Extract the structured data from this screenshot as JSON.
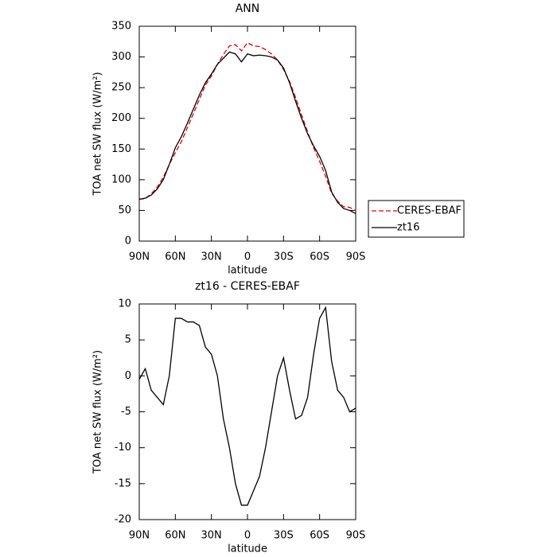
{
  "chart_data": [
    {
      "type": "line",
      "title": "ANN",
      "xlabel": "latitude",
      "ylabel": "TOA net SW flux (W/m²)",
      "x": [
        90,
        85,
        80,
        75,
        70,
        65,
        60,
        55,
        50,
        45,
        40,
        35,
        30,
        25,
        20,
        15,
        10,
        5,
        0,
        -5,
        -10,
        -15,
        -20,
        -25,
        -30,
        -35,
        -40,
        -45,
        -50,
        -55,
        -60,
        -65,
        -70,
        -75,
        -80,
        -85,
        -90
      ],
      "series": [
        {
          "name": "CERES-EBAF",
          "color": "#e00000",
          "dash": true,
          "values": [
            68.5,
            69,
            77,
            88,
            104,
            125,
            144,
            162,
            184.5,
            207.5,
            231,
            254,
            269,
            288,
            304,
            318,
            320,
            310,
            323,
            318,
            317,
            312,
            305,
            295,
            279.5,
            260,
            234,
            205.5,
            178,
            152,
            130,
            105.5,
            78,
            65,
            56,
            55,
            49.5
          ]
        },
        {
          "name": "zt16",
          "color": "#000000",
          "dash": false,
          "values": [
            68,
            70,
            75,
            85,
            100,
            125,
            152,
            170,
            192,
            215,
            238,
            258,
            272,
            288,
            298,
            308,
            305,
            292,
            305,
            302,
            303,
            302,
            300,
            295,
            282,
            258,
            228,
            200,
            175,
            155,
            138,
            115,
            80,
            63,
            53,
            50,
            45
          ]
        }
      ],
      "xlim": [
        90,
        -90
      ],
      "xticks": [
        {
          "value": 90,
          "label": "90N"
        },
        {
          "value": 60,
          "label": "60N"
        },
        {
          "value": 30,
          "label": "30N"
        },
        0,
        {
          "value": -30,
          "label": "30S"
        },
        {
          "value": -60,
          "label": "60S"
        },
        {
          "value": -90,
          "label": "90S"
        }
      ],
      "ylim": [
        0,
        350
      ],
      "yticks": [
        0,
        50,
        100,
        150,
        200,
        250,
        300,
        350
      ],
      "legend": "right"
    },
    {
      "type": "line",
      "title": "zt16 - CERES-EBAF",
      "xlabel": "latitude",
      "ylabel": "TOA net SW flux (W/m²)",
      "x": [
        90,
        85,
        80,
        75,
        70,
        65,
        60,
        55,
        50,
        45,
        40,
        35,
        30,
        25,
        20,
        15,
        10,
        5,
        0,
        -5,
        -10,
        -15,
        -20,
        -25,
        -30,
        -35,
        -40,
        -45,
        -50,
        -55,
        -60,
        -65,
        -70,
        -75,
        -80,
        -85,
        -90
      ],
      "color": "#000000",
      "values": [
        -0.5,
        1,
        -2,
        -3,
        -4,
        0,
        8,
        8,
        7.5,
        7.5,
        7,
        4,
        3,
        0,
        -6,
        -10,
        -15,
        -18,
        -18,
        -16,
        -14,
        -10,
        -5,
        0,
        2.5,
        -2,
        -6,
        -5.5,
        -3,
        3,
        8,
        9.5,
        2,
        -2,
        -3,
        -5,
        -4.5
      ],
      "xlim": [
        90,
        -90
      ],
      "xticks": [
        {
          "value": 90,
          "label": "90N"
        },
        {
          "value": 60,
          "label": "60N"
        },
        {
          "value": 30,
          "label": "30N"
        },
        0,
        {
          "value": -30,
          "label": "30S"
        },
        {
          "value": -60,
          "label": "60S"
        },
        {
          "value": -90,
          "label": "90S"
        }
      ],
      "ylim": [
        -20,
        10
      ],
      "yticks": [
        -20,
        -15,
        -10,
        -5,
        0,
        5,
        10
      ]
    }
  ]
}
